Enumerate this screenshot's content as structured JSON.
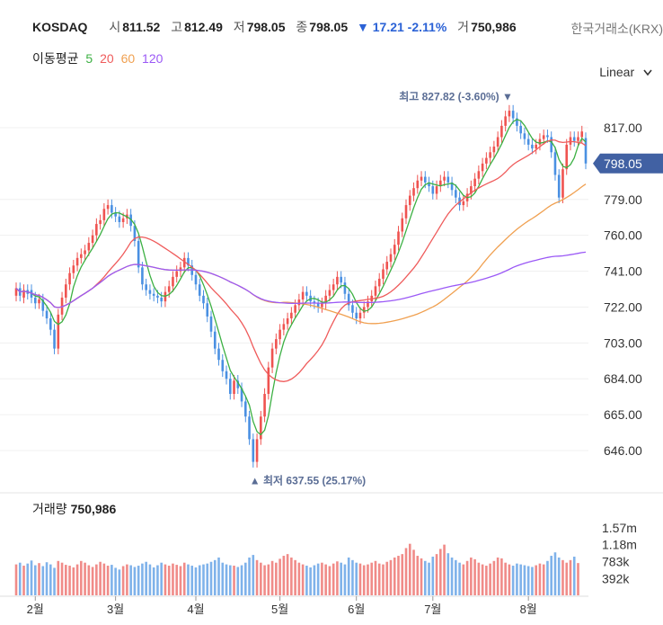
{
  "header": {
    "symbol": "KOSDAQ",
    "open_label": "시",
    "open": "811.52",
    "high_label": "고",
    "high": "812.49",
    "low_label": "저",
    "low": "798.05",
    "close_label": "종",
    "close": "798.05",
    "change": "▼ 17.21 -2.11%",
    "volume_label": "거",
    "volume": "750,986",
    "exchange": "한국거래소(KRX)"
  },
  "ma_legend": {
    "title": "이동평균",
    "items": [
      {
        "label": "5",
        "color": "#3cb043"
      },
      {
        "label": "20",
        "color": "#ef5b5b"
      },
      {
        "label": "60",
        "color": "#f0a050"
      },
      {
        "label": "120",
        "color": "#9b59f6"
      }
    ]
  },
  "scale": {
    "label": "Linear",
    "chevron": "chevron-down-icon"
  },
  "volume_panel": {
    "title": "거래량",
    "value": "750,986"
  },
  "colors": {
    "up": "#ef5350",
    "down": "#4a90e2",
    "ma5": "#3cb043",
    "ma20": "#ef5b5b",
    "ma60": "#f0a050",
    "ma120": "#9b59f6",
    "last_badge": "#4161a3"
  },
  "chart_data": {
    "type": "candlestick",
    "price_ticks": [
      "817.00",
      "798.05",
      "779.00",
      "760.00",
      "741.00",
      "722.00",
      "703.00",
      "684.00",
      "665.00",
      "646.00"
    ],
    "price_tick_values": [
      817,
      798.05,
      779,
      760,
      741,
      722,
      703,
      684,
      665,
      646
    ],
    "volume_ticks": [
      "1.57m",
      "1.18m",
      "783k",
      "392k"
    ],
    "volume_tick_values": [
      1570000,
      1180000,
      783000,
      392000
    ],
    "months": [
      "2월",
      "3월",
      "4월",
      "5월",
      "6월",
      "7월",
      "8월"
    ],
    "month_index": [
      5,
      26,
      47,
      69,
      89,
      109,
      134
    ],
    "last_price": "798.05",
    "max_label": "최고 827.82 (-3.60%) ▼",
    "max_value": 827.82,
    "min_label": "▲ 최저 637.55 (25.17%)",
    "min_value": 637.55,
    "closes": [
      732,
      728,
      731,
      729,
      727,
      724,
      726,
      720,
      716,
      710,
      700,
      718,
      727,
      734,
      740,
      744,
      748,
      750,
      752,
      756,
      760,
      766,
      768,
      774,
      776,
      772,
      770,
      767,
      769,
      771,
      765,
      757,
      743,
      734,
      731,
      729,
      728,
      727,
      725,
      730,
      733,
      738,
      741,
      743,
      748,
      744,
      739,
      734,
      728,
      724,
      717,
      709,
      700,
      694,
      688,
      684,
      676,
      683,
      679,
      672,
      664,
      652,
      640,
      652,
      664,
      676,
      690,
      700,
      705,
      710,
      713,
      716,
      719,
      723,
      726,
      730,
      728,
      725,
      724,
      722,
      724,
      728,
      731,
      734,
      738,
      735,
      729,
      723,
      719,
      716,
      719,
      722,
      725,
      728,
      733,
      737,
      742,
      746,
      750,
      755,
      762,
      769,
      776,
      781,
      785,
      789,
      791,
      788,
      786,
      782,
      786,
      789,
      791,
      788,
      784,
      780,
      776,
      778,
      782,
      786,
      790,
      794,
      798,
      801,
      804,
      807,
      812,
      818,
      823,
      826,
      822,
      818,
      814,
      811,
      808,
      806,
      808,
      811,
      813,
      812,
      804,
      792,
      780,
      795,
      808,
      812,
      810,
      812,
      815,
      798.05
    ],
    "opens": [
      728,
      732,
      727,
      731,
      731,
      727,
      724,
      726,
      720,
      716,
      710,
      700,
      718,
      727,
      734,
      740,
      744,
      748,
      750,
      752,
      756,
      760,
      766,
      768,
      774,
      776,
      772,
      770,
      767,
      769,
      771,
      765,
      757,
      743,
      734,
      731,
      729,
      728,
      727,
      725,
      730,
      733,
      738,
      741,
      743,
      748,
      744,
      739,
      734,
      728,
      724,
      717,
      709,
      700,
      694,
      688,
      684,
      676,
      683,
      679,
      672,
      664,
      652,
      640,
      652,
      664,
      676,
      690,
      700,
      705,
      710,
      713,
      716,
      719,
      723,
      726,
      730,
      728,
      725,
      724,
      722,
      724,
      728,
      731,
      734,
      738,
      735,
      729,
      723,
      719,
      716,
      719,
      722,
      725,
      728,
      733,
      737,
      742,
      746,
      750,
      755,
      762,
      769,
      776,
      781,
      785,
      789,
      791,
      788,
      786,
      782,
      786,
      789,
      791,
      788,
      784,
      780,
      776,
      778,
      782,
      786,
      790,
      794,
      798,
      801,
      804,
      807,
      812,
      818,
      823,
      826,
      822,
      818,
      814,
      811,
      808,
      806,
      808,
      811,
      813,
      812,
      804,
      792,
      780,
      795,
      808,
      812,
      810,
      812,
      811.52
    ],
    "volumes": [
      720,
      760,
      690,
      740,
      810,
      700,
      750,
      680,
      770,
      720,
      640,
      800,
      760,
      710,
      690,
      650,
      720,
      800,
      760,
      700,
      660,
      720,
      780,
      740,
      690,
      710,
      640,
      600,
      680,
      720,
      700,
      660,
      690,
      740,
      780,
      720,
      650,
      700,
      760,
      720,
      690,
      740,
      710,
      680,
      760,
      720,
      690,
      650,
      700,
      720,
      740,
      780,
      820,
      880,
      760,
      720,
      700,
      690,
      660,
      700,
      760,
      880,
      940,
      820,
      760,
      700,
      720,
      800,
      760,
      850,
      920,
      960,
      880,
      820,
      760,
      720,
      690,
      650,
      700,
      740,
      760,
      720,
      680,
      740,
      790,
      760,
      720,
      880,
      820,
      760,
      740,
      700,
      720,
      760,
      800,
      740,
      720,
      780,
      820,
      880,
      920,
      960,
      1100,
      1200,
      1060,
      920,
      860,
      800,
      760,
      900,
      960,
      1080,
      1180,
      980,
      880,
      820,
      760,
      720,
      800,
      880,
      840,
      760,
      720,
      690,
      740,
      800,
      880,
      860,
      760,
      720,
      690,
      740,
      720,
      700,
      680,
      660,
      700,
      740,
      720,
      800,
      920,
      1000,
      880,
      820,
      760,
      820,
      900,
      751
    ]
  }
}
